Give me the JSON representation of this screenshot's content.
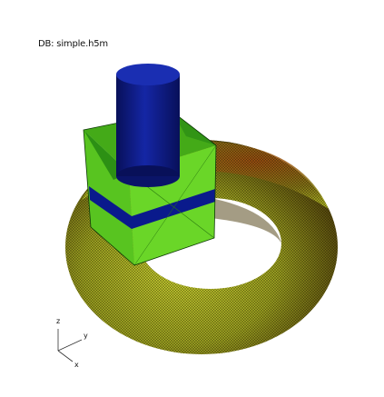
{
  "window": {
    "db_label": "DB: simple.h5m"
  },
  "triad": {
    "z_label": "z",
    "y_label": "y",
    "x_label": "x"
  },
  "colors": {
    "background": "#ffffff",
    "cylinder": "#1428b4",
    "cylinder_mesh": "#000000",
    "box_face": "#66dd22",
    "box_band": "#0a1a8c",
    "torus_outer": "#9aa020",
    "torus_inner": "#b8c428",
    "torus_shadow": "#4a3a0a",
    "torus_highlight": "#c8d030"
  },
  "scene": {
    "objects": [
      "torus",
      "box",
      "cylinder"
    ],
    "mesh_visible": true
  }
}
